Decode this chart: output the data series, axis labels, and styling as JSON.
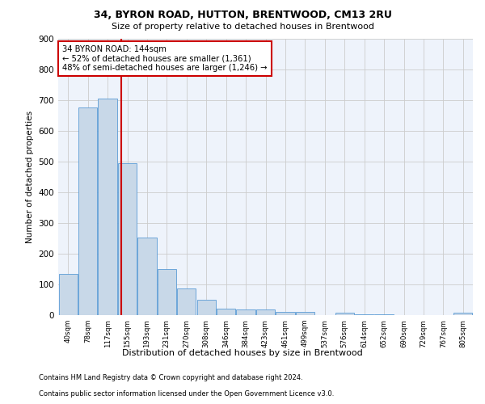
{
  "title1": "34, BYRON ROAD, HUTTON, BRENTWOOD, CM13 2RU",
  "title2": "Size of property relative to detached houses in Brentwood",
  "xlabel": "Distribution of detached houses by size in Brentwood",
  "ylabel": "Number of detached properties",
  "bar_labels": [
    "40sqm",
    "78sqm",
    "117sqm",
    "155sqm",
    "193sqm",
    "231sqm",
    "270sqm",
    "308sqm",
    "346sqm",
    "384sqm",
    "423sqm",
    "461sqm",
    "499sqm",
    "537sqm",
    "576sqm",
    "614sqm",
    "652sqm",
    "690sqm",
    "729sqm",
    "767sqm",
    "805sqm"
  ],
  "bar_values": [
    135,
    675,
    705,
    493,
    253,
    150,
    87,
    50,
    22,
    18,
    18,
    10,
    10,
    0,
    8,
    2,
    2,
    0,
    0,
    0,
    8
  ],
  "bar_color": "#c8d8e8",
  "bar_edge_color": "#5b9bd5",
  "grid_color": "#cccccc",
  "bg_color": "#eef3fb",
  "annotation_text": "34 BYRON ROAD: 144sqm\n← 52% of detached houses are smaller (1,361)\n48% of semi-detached houses are larger (1,246) →",
  "annotation_box_color": "#ffffff",
  "annotation_box_edge_color": "#cc0000",
  "footer1": "Contains HM Land Registry data © Crown copyright and database right 2024.",
  "footer2": "Contains public sector information licensed under the Open Government Licence v3.0.",
  "ylim": [
    0,
    900
  ],
  "yticks": [
    0,
    100,
    200,
    300,
    400,
    500,
    600,
    700,
    800,
    900
  ],
  "property_sqm": 144,
  "bin_centers": [
    40,
    78,
    117,
    155,
    193,
    231,
    270,
    308,
    346,
    384,
    423,
    461,
    499,
    537,
    576,
    614,
    652,
    690,
    729,
    767,
    805
  ]
}
